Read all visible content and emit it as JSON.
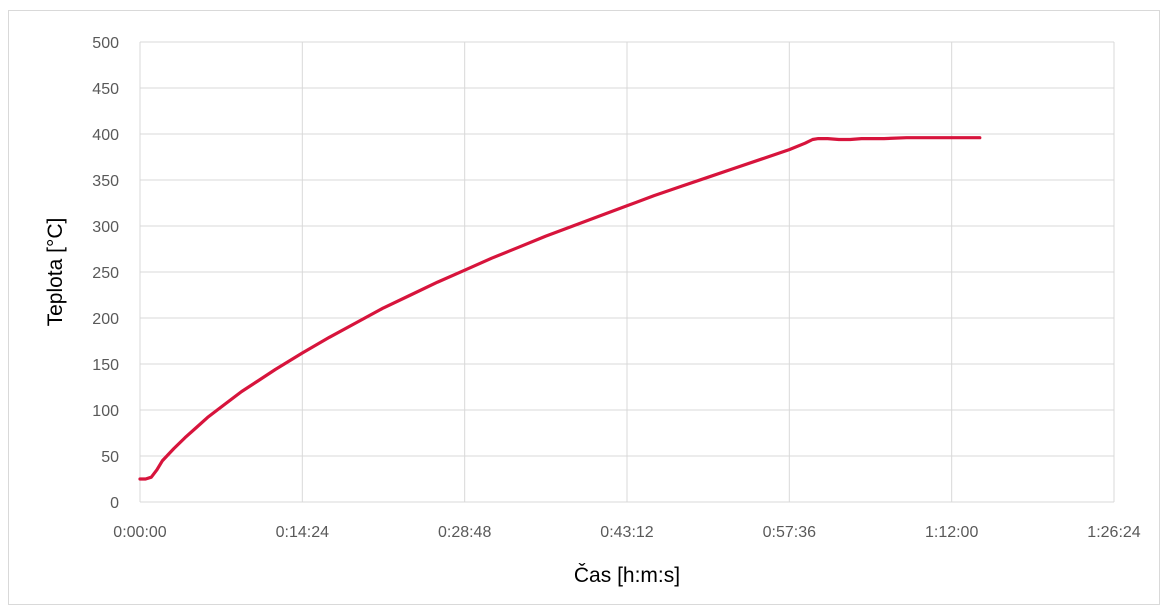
{
  "chart_data": {
    "type": "line",
    "title": "",
    "xlabel": "Čas [h:m:s]",
    "ylabel": "Teplota [°C]",
    "xlim_seconds": [
      0,
      5184
    ],
    "ylim": [
      0,
      500
    ],
    "x_tick_labels": [
      "0:00:00",
      "0:14:24",
      "0:28:48",
      "0:43:12",
      "0:57:36",
      "1:12:00",
      "1:26:24"
    ],
    "y_tick_labels": [
      "0",
      "50",
      "100",
      "150",
      "200",
      "250",
      "300",
      "350",
      "400",
      "450",
      "500"
    ],
    "grid": true,
    "legend": "none",
    "series": [
      {
        "color": "#d7143c",
        "x": [
          "0:00:00",
          "0:00:30",
          "0:01:00",
          "0:01:30",
          "0:02:00",
          "0:03:00",
          "0:04:00",
          "0:05:00",
          "0:06:00",
          "0:07:30",
          "0:09:00",
          "0:10:30",
          "0:12:00",
          "0:14:24",
          "0:16:48",
          "0:19:12",
          "0:21:36",
          "0:24:00",
          "0:26:24",
          "0:28:48",
          "0:31:12",
          "0:33:36",
          "0:36:00",
          "0:38:24",
          "0:40:48",
          "0:43:12",
          "0:45:36",
          "0:48:00",
          "0:50:24",
          "0:52:48",
          "0:55:12",
          "0:57:36",
          "0:59:00",
          "0:59:40",
          "1:00:10",
          "1:01:00",
          "1:02:00",
          "1:03:00",
          "1:04:00",
          "1:06:00",
          "1:08:00",
          "1:10:00",
          "1:12:00",
          "1:14:00",
          "1:14:30"
        ],
        "y": [
          25,
          25,
          27,
          35,
          45,
          58,
          70,
          81,
          92,
          106,
          120,
          132,
          144,
          162,
          179,
          195,
          211,
          225,
          239,
          252,
          265,
          277,
          289,
          300,
          311,
          322,
          333,
          343,
          353,
          363,
          373,
          383,
          390,
          394,
          395,
          395,
          394,
          394,
          395,
          395,
          396,
          396,
          396,
          396,
          396
        ]
      }
    ]
  }
}
